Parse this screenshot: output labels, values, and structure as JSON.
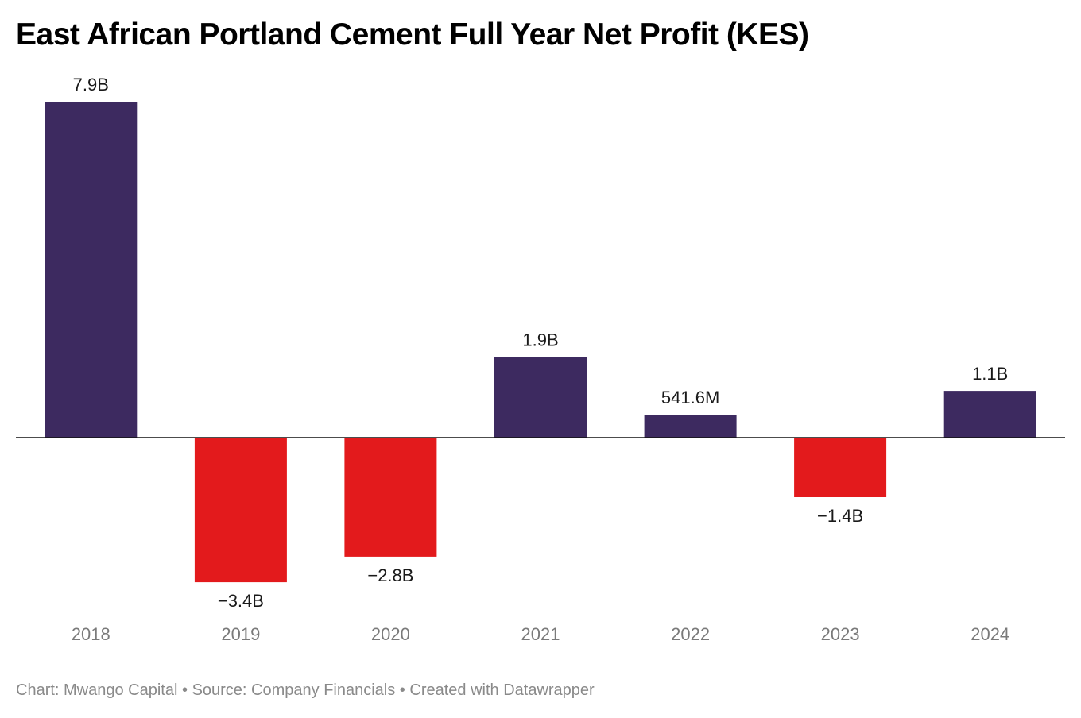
{
  "title": "East African Portland Cement Full Year Net Profit (KES)",
  "footer": {
    "chart_by": "Chart: Mwango Capital",
    "separator": " • ",
    "source": "Source: Company Financials",
    "created_with": "Created with Datawrapper"
  },
  "colors": {
    "positive": "#3d2a60",
    "negative": "#e31a1c",
    "baseline": "#111111"
  },
  "chart_data": {
    "type": "bar",
    "title": "East African Portland Cement Full Year Net Profit (KES)",
    "xlabel": "",
    "ylabel": "",
    "categories": [
      "2018",
      "2019",
      "2020",
      "2021",
      "2022",
      "2023",
      "2024"
    ],
    "values": [
      7900000000,
      -3400000000,
      -2800000000,
      1900000000,
      541600000,
      -1400000000,
      1100000000
    ],
    "labels": [
      "7.9B",
      "−3.4B",
      "−2.8B",
      "1.9B",
      "541.6M",
      "−1.4B",
      "1.1B"
    ],
    "ylim": [
      -3400000000,
      7900000000
    ],
    "grid": false,
    "legend": "none"
  }
}
